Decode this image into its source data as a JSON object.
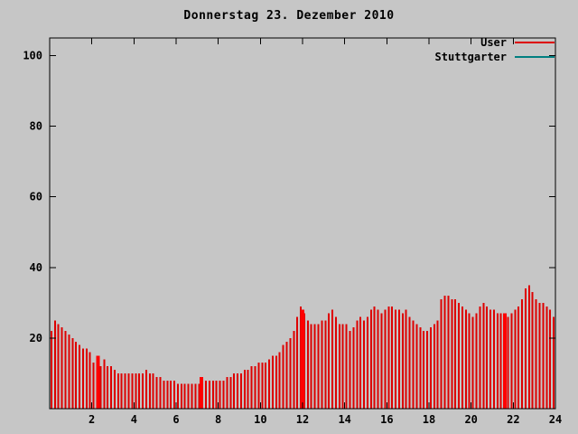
{
  "title": "Donnerstag 23. Dezember 2010",
  "legend": {
    "entries": [
      {
        "label": "User",
        "color": "#dd0000"
      },
      {
        "label": "Stuttgarter",
        "color": "#007f80"
      }
    ]
  },
  "colors": {
    "background": "#c6c6c6",
    "axis": "#000000",
    "bar": "#dd0000",
    "highlight": "#ff0000"
  },
  "chart_data": {
    "type": "bar",
    "title": "Donnerstag 23. Dezember 2010",
    "xlabel": "",
    "ylabel": "",
    "x_unit": "hour-of-day",
    "xlim": [
      0,
      24
    ],
    "ylim": [
      0,
      105
    ],
    "xticks": [
      2,
      4,
      6,
      8,
      10,
      12,
      14,
      16,
      18,
      20,
      22,
      24
    ],
    "yticks": [
      20,
      40,
      60,
      80,
      100
    ],
    "grid": false,
    "legend_position": "top-right-inside",
    "interval_minutes": 10,
    "series": [
      {
        "name": "User",
        "color": "#dd0000",
        "values": [
          22,
          25,
          24,
          23,
          22,
          21,
          20,
          19,
          18,
          17,
          17,
          16,
          13,
          13,
          12,
          14,
          12,
          12,
          11,
          10,
          10,
          10,
          10,
          10,
          10,
          10,
          10,
          11,
          10,
          10,
          9,
          9,
          8,
          8,
          8,
          8,
          7,
          7,
          7,
          7,
          7,
          7,
          7,
          9,
          8,
          8,
          8,
          8,
          8,
          8,
          9,
          9,
          10,
          10,
          10,
          11,
          11,
          12,
          12,
          13,
          13,
          13,
          14,
          15,
          15,
          16,
          18,
          19,
          20,
          22,
          26,
          29,
          27,
          25,
          24,
          24,
          24,
          25,
          25,
          27,
          28,
          26,
          24,
          24,
          24,
          22,
          23,
          25,
          26,
          25,
          26,
          28,
          29,
          28,
          27,
          28,
          29,
          29,
          28,
          28,
          27,
          28,
          26,
          25,
          24,
          23,
          22,
          22,
          23,
          24,
          25,
          31,
          32,
          32,
          31,
          31,
          30,
          29,
          28,
          27,
          26,
          27,
          29,
          30,
          29,
          28,
          28,
          27,
          27,
          27,
          26,
          27,
          28,
          29,
          31,
          34,
          35,
          33,
          31,
          30,
          30,
          29,
          28,
          26
        ]
      },
      {
        "name": "Stuttgarter",
        "color": "#007f80",
        "values": []
      }
    ],
    "highlights": [
      {
        "hour": 2.3,
        "value": 15
      },
      {
        "hour": 7.2,
        "value": 9
      },
      {
        "hour": 12.0,
        "value": 28
      },
      {
        "hour": 21.6,
        "value": 27
      }
    ]
  }
}
